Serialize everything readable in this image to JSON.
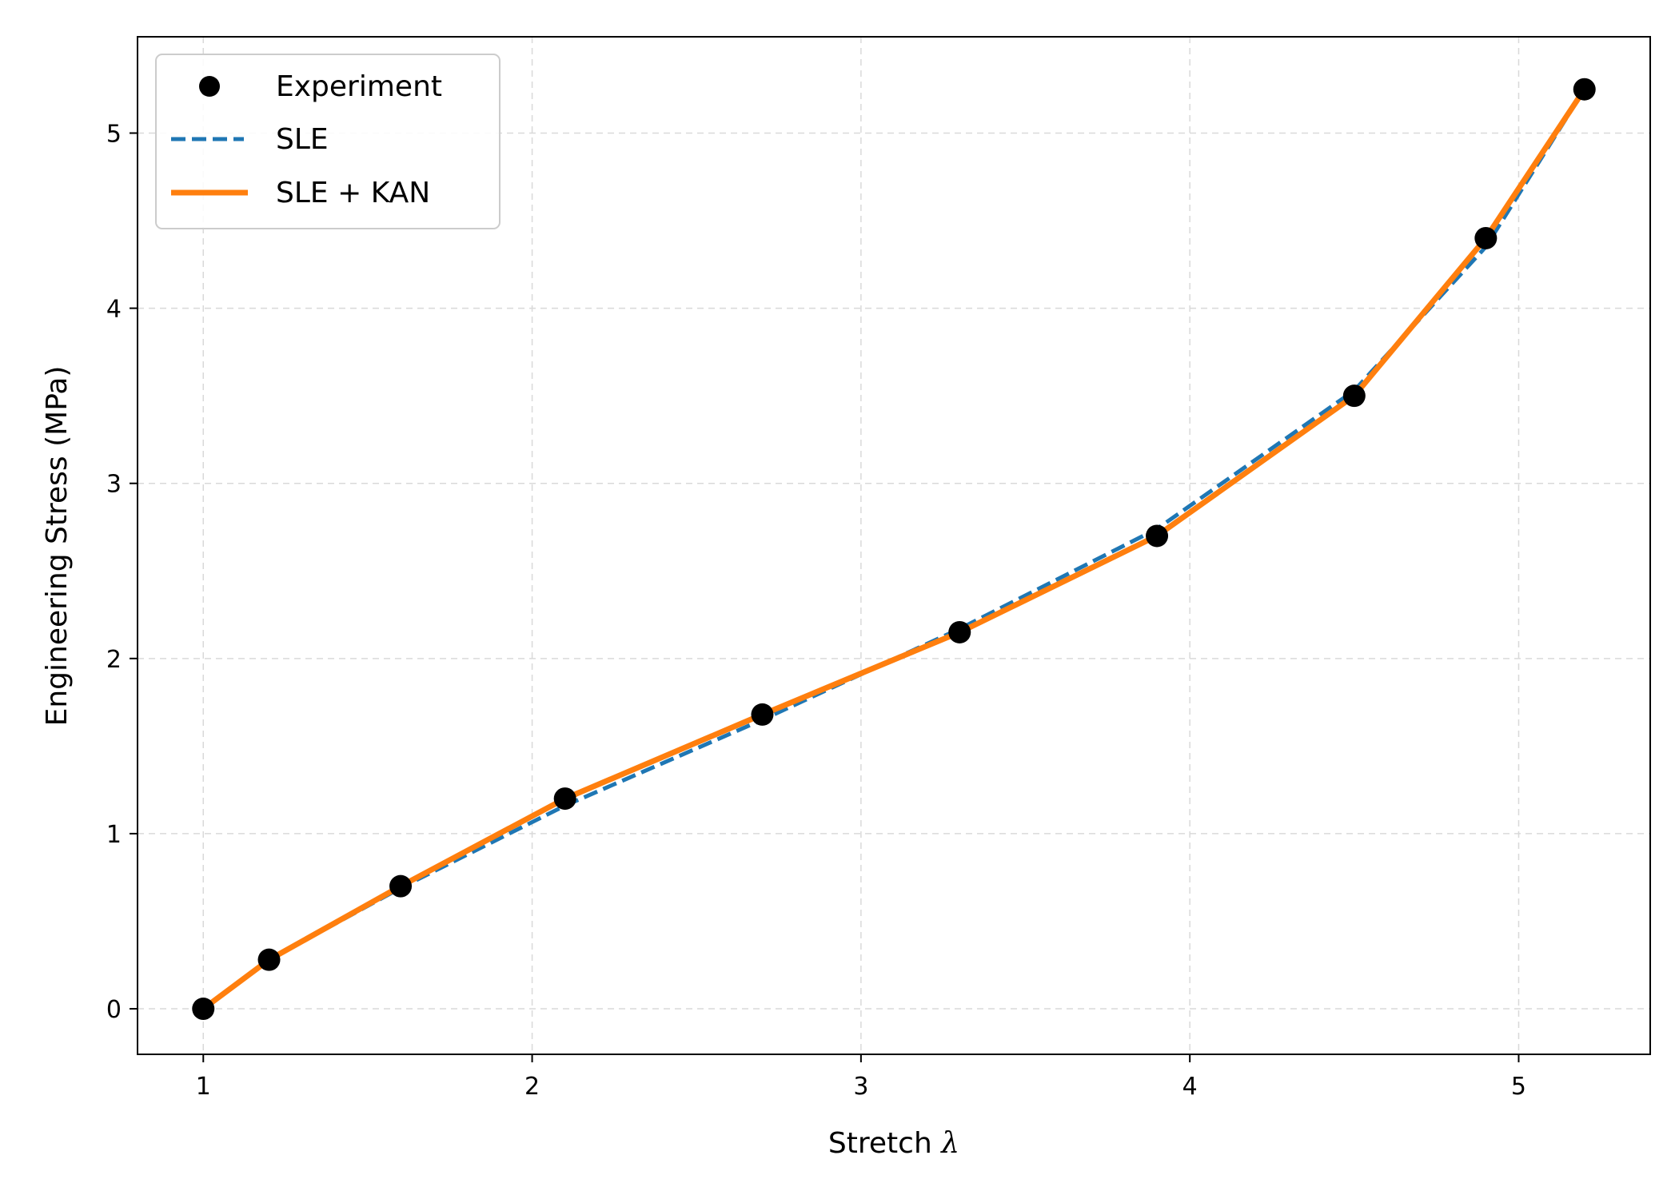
{
  "chart_data": {
    "type": "line",
    "xlabel": "Stretch",
    "xlabel_symbol": "λ",
    "ylabel": "Engineering Stress (MPa)",
    "xlim": [
      0.8,
      5.4
    ],
    "ylim": [
      -0.26,
      5.55
    ],
    "xticks": [
      1,
      2,
      3,
      4,
      5
    ],
    "yticks": [
      0,
      1,
      2,
      3,
      4,
      5
    ],
    "grid": true,
    "legend_position": "top-left",
    "series": [
      {
        "name": "Experiment",
        "kind": "scatter",
        "color": "#000000",
        "x": [
          1.0,
          1.2,
          1.6,
          2.1,
          2.7,
          3.3,
          3.9,
          4.5,
          4.9,
          5.2
        ],
        "y": [
          0.0,
          0.28,
          0.7,
          1.2,
          1.68,
          2.15,
          2.7,
          3.5,
          4.4,
          5.25
        ]
      },
      {
        "name": "SLE",
        "kind": "dashed-line",
        "color": "#1f77b4",
        "x": [
          1.0,
          1.2,
          1.6,
          2.1,
          2.7,
          3.3,
          3.9,
          4.5,
          4.9,
          5.2
        ],
        "y": [
          0.0,
          0.28,
          0.69,
          1.16,
          1.65,
          2.17,
          2.74,
          3.53,
          4.35,
          5.25
        ]
      },
      {
        "name": "SLE + KAN",
        "kind": "line",
        "color": "#ff7f0e",
        "x": [
          1.0,
          1.2,
          1.6,
          2.1,
          2.7,
          3.3,
          3.9,
          4.5,
          4.9,
          5.2
        ],
        "y": [
          0.0,
          0.28,
          0.7,
          1.2,
          1.68,
          2.15,
          2.7,
          3.5,
          4.4,
          5.25
        ]
      }
    ]
  }
}
